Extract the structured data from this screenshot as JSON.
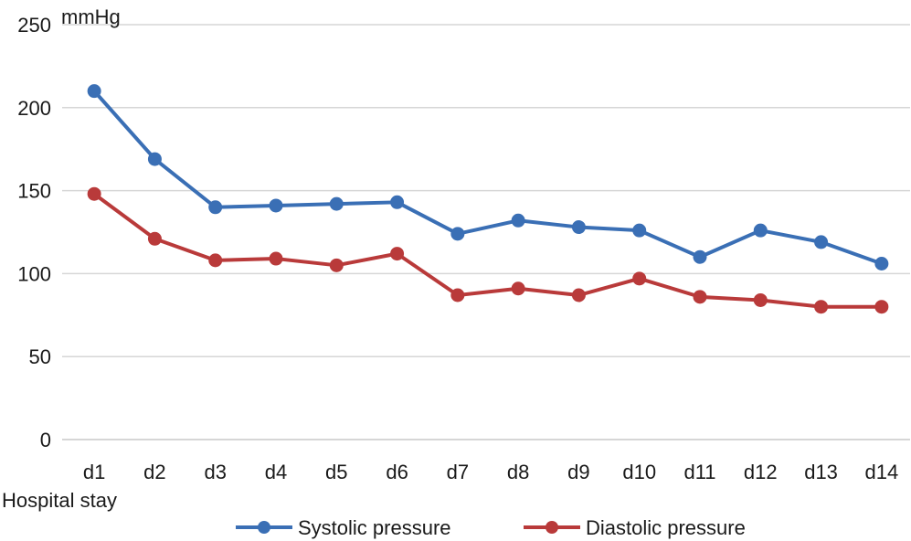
{
  "chart_data": {
    "type": "line",
    "ylabel": "mmHg",
    "xlabel": "Hospital stay",
    "ylim": [
      0,
      250
    ],
    "yticks": [
      0,
      50,
      100,
      150,
      200,
      250
    ],
    "grid": true,
    "legend_position": "bottom",
    "categories": [
      "d1",
      "d2",
      "d3",
      "d4",
      "d5",
      "d6",
      "d7",
      "d8",
      "d9",
      "d10",
      "d11",
      "d12",
      "d13",
      "d14"
    ],
    "series": [
      {
        "name": "Systolic pressure",
        "color": "#3a6fb5",
        "values": [
          210,
          169,
          140,
          141,
          142,
          143,
          124,
          132,
          128,
          126,
          110,
          126,
          119,
          106
        ]
      },
      {
        "name": "Diastolic pressure",
        "color": "#b93a3a",
        "values": [
          148,
          121,
          108,
          109,
          105,
          112,
          87,
          91,
          87,
          97,
          86,
          84,
          80,
          80
        ]
      }
    ]
  }
}
